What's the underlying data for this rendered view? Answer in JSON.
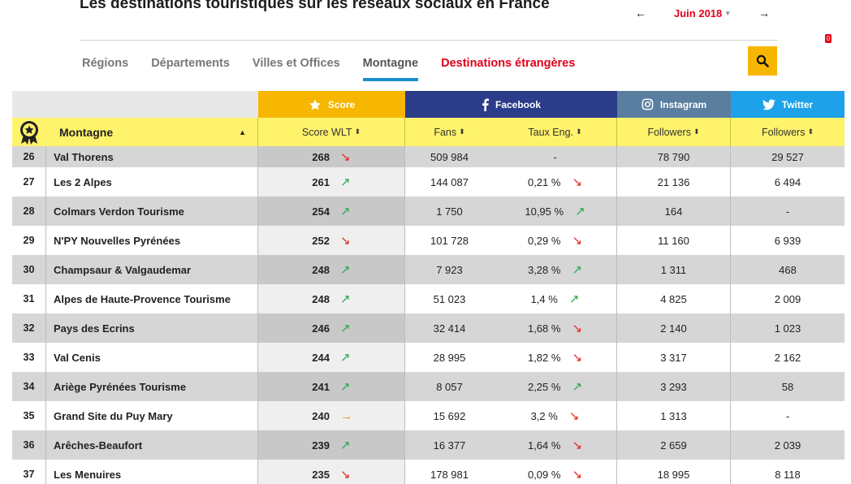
{
  "page": {
    "title": "Les destinations touristiques sur les réseaux sociaux en France"
  },
  "month_nav": {
    "prev_arrow": "←",
    "next_arrow": "→",
    "current_month": "Juin 2018"
  },
  "tabs": [
    {
      "label": "Régions",
      "active": false
    },
    {
      "label": "Départements",
      "active": false
    },
    {
      "label": "Villes et Offices",
      "active": false
    },
    {
      "label": "Montagne",
      "active": true
    },
    {
      "label": "Destinations étrangères",
      "active": false
    }
  ],
  "notification_count": "0",
  "table": {
    "groups": {
      "score": "Score",
      "facebook": "Facebook",
      "instagram": "Instagram",
      "twitter": "Twitter"
    },
    "columns": {
      "name": "Montagne",
      "score": "Score WLT",
      "fans": "Fans",
      "engagement": "Taux Eng.",
      "ig_followers": "Followers",
      "tw_followers": "Followers"
    },
    "rows": [
      {
        "rank": "26",
        "name": "Val Thorens",
        "score": "268",
        "score_trend": "down",
        "fans": "509 984",
        "engagement": "-",
        "eng_trend": "",
        "ig": "78 790",
        "tw": "29 527"
      },
      {
        "rank": "27",
        "name": "Les 2 Alpes",
        "score": "261",
        "score_trend": "up",
        "fans": "144 087",
        "engagement": "0,21 %",
        "eng_trend": "down",
        "ig": "21 136",
        "tw": "6 494"
      },
      {
        "rank": "28",
        "name": "Colmars Verdon Tourisme",
        "score": "254",
        "score_trend": "up",
        "fans": "1 750",
        "engagement": "10,95 %",
        "eng_trend": "up",
        "ig": "164",
        "tw": "-"
      },
      {
        "rank": "29",
        "name": "N'PY Nouvelles Pyrénées",
        "score": "252",
        "score_trend": "down",
        "fans": "101 728",
        "engagement": "0,29 %",
        "eng_trend": "down",
        "ig": "11 160",
        "tw": "6 939"
      },
      {
        "rank": "30",
        "name": "Champsaur & Valgaudemar",
        "score": "248",
        "score_trend": "up",
        "fans": "7 923",
        "engagement": "3,28 %",
        "eng_trend": "up",
        "ig": "1 311",
        "tw": "468"
      },
      {
        "rank": "31",
        "name": "Alpes de Haute-Provence Tourisme",
        "score": "248",
        "score_trend": "up",
        "fans": "51 023",
        "engagement": "1,4 %",
        "eng_trend": "up",
        "ig": "4 825",
        "tw": "2 009"
      },
      {
        "rank": "32",
        "name": "Pays des Ecrins",
        "score": "246",
        "score_trend": "up",
        "fans": "32 414",
        "engagement": "1,68 %",
        "eng_trend": "down",
        "ig": "2 140",
        "tw": "1 023"
      },
      {
        "rank": "33",
        "name": "Val Cenis",
        "score": "244",
        "score_trend": "up",
        "fans": "28 995",
        "engagement": "1,82 %",
        "eng_trend": "down",
        "ig": "3 317",
        "tw": "2 162"
      },
      {
        "rank": "34",
        "name": "Ariège Pyrénées Tourisme",
        "score": "241",
        "score_trend": "up",
        "fans": "8 057",
        "engagement": "2,25 %",
        "eng_trend": "up",
        "ig": "3 293",
        "tw": "58"
      },
      {
        "rank": "35",
        "name": "Grand Site du Puy Mary",
        "score": "240",
        "score_trend": "flat",
        "fans": "15 692",
        "engagement": "3,2 %",
        "eng_trend": "down",
        "ig": "1 313",
        "tw": "-"
      },
      {
        "rank": "36",
        "name": "Arêches-Beaufort",
        "score": "239",
        "score_trend": "up",
        "fans": "16 377",
        "engagement": "1,64 %",
        "eng_trend": "down",
        "ig": "2 659",
        "tw": "2 039"
      },
      {
        "rank": "37",
        "name": "Les Menuires",
        "score": "235",
        "score_trend": "down",
        "fans": "178 981",
        "engagement": "0,09 %",
        "eng_trend": "down",
        "ig": "18 995",
        "tw": "8 118"
      }
    ]
  },
  "colors": {
    "accent_red": "#e2001a",
    "score_yellow": "#f7b600",
    "facebook_blue": "#2b3c8a",
    "instagram_blue": "#5a7ea0",
    "twitter_blue": "#1da1e8",
    "header_yellow": "#fff36b",
    "trend_up": "#2aa84a",
    "trend_down": "#e2231a",
    "trend_flat": "#f08a24"
  }
}
